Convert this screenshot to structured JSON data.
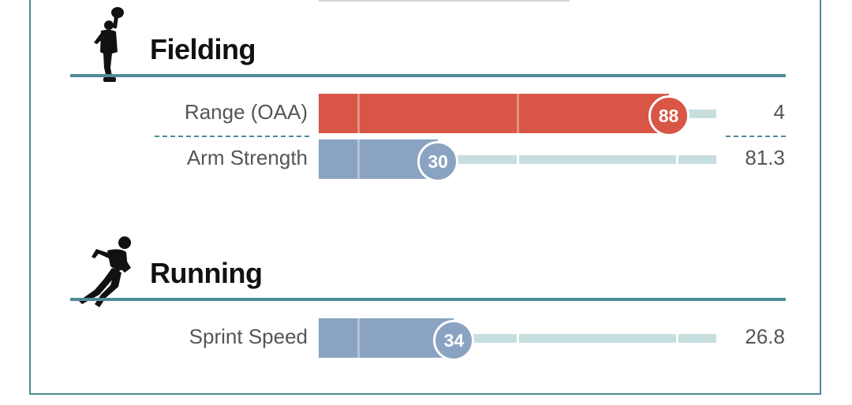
{
  "colors": {
    "accent_teal": "#4f8b96",
    "high_percentile": "#d95545",
    "low_percentile": "#8aa3c2",
    "track": "#c7dede"
  },
  "sections": [
    {
      "title": "Fielding",
      "icon": "fielder-silhouette-icon",
      "metrics": [
        {
          "label": "Range (OAA)",
          "percentile": 88,
          "value": "4"
        },
        {
          "label": "Arm Strength",
          "percentile": 30,
          "value": "81.3"
        }
      ]
    },
    {
      "title": "Running",
      "icon": "runner-silhouette-icon",
      "metrics": [
        {
          "label": "Sprint Speed",
          "percentile": 34,
          "value": "26.8"
        }
      ]
    }
  ],
  "chart_data": {
    "type": "bar",
    "categories": [
      "Range (OAA)",
      "Arm Strength",
      "Sprint Speed"
    ],
    "series": [
      {
        "values": [
          88,
          30,
          34
        ]
      }
    ],
    "raw_values": [
      "4",
      "81.3",
      "26.8"
    ],
    "ylim": [
      0,
      100
    ],
    "grid": false
  }
}
